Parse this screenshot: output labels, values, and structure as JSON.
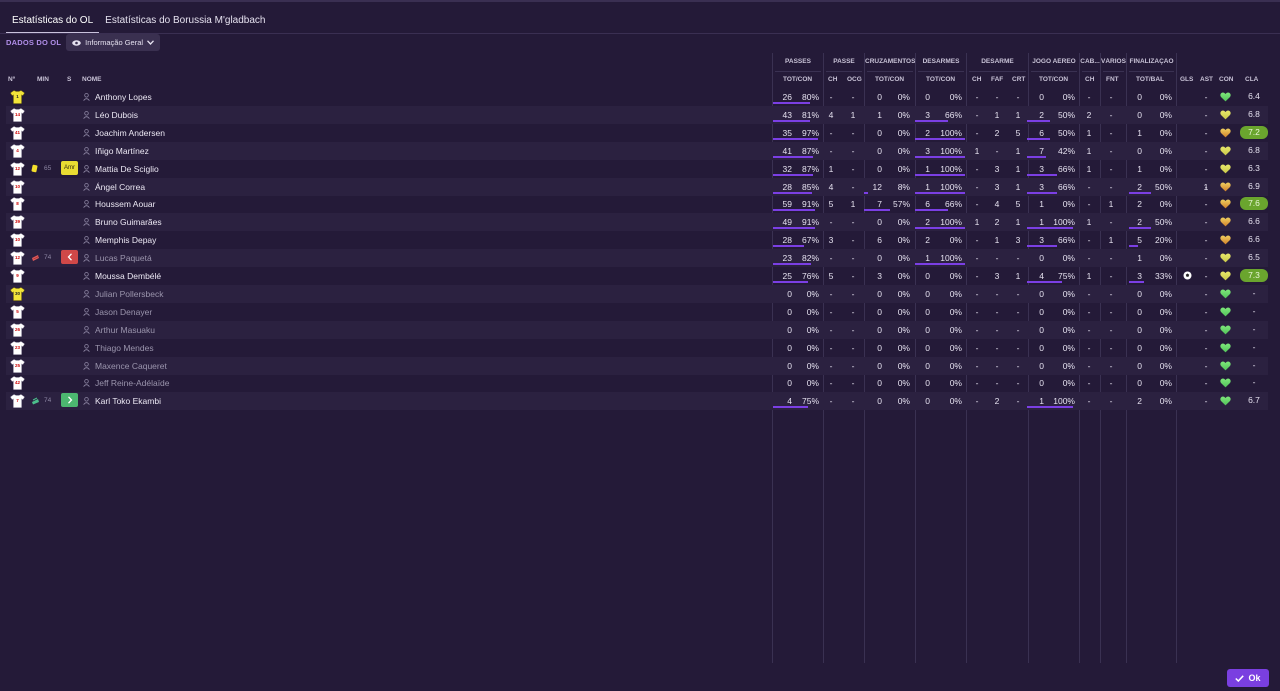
{
  "tabs": [
    "Estatísticas do OL",
    "Estatísticas do Borussia M'gladbach"
  ],
  "subbar": {
    "label": "DADOS DO OL",
    "dropdown": "Informação Geral"
  },
  "groups": [
    "PASSES",
    "PASSE",
    "CRUZAMENTOS",
    "DESARMES",
    "DESARME",
    "JOGO AÉREO",
    "CAB...",
    "VÁRIOS",
    "FINALIZAÇÃO"
  ],
  "headers": [
    "Nº",
    "MIN",
    "S",
    "NOME",
    "TOT/CON",
    "CH",
    "OCG",
    "TOT/CON",
    "TOT/CON",
    "CH",
    "FAF",
    "CRT",
    "TOT/CON",
    "CH",
    "FNT",
    "TOT/BAL",
    "GLS",
    "AST",
    "CON",
    "CLA"
  ],
  "colors": {
    "accent": "#7b3fe4",
    "background": "#241a38",
    "rating_high": "#6aa52e"
  },
  "players": [
    {
      "num": "1",
      "min": "",
      "sub": "",
      "card": "",
      "name": "Anthony Lopes",
      "pt": "26",
      "pp": "80%",
      "ch": "-",
      "ocg": "-",
      "ct": "0",
      "cp": "0%",
      "dt": "0",
      "dp": "0%",
      "dch": "-",
      "faf": "-",
      "crt": "-",
      "at": "0",
      "ap": "0%",
      "cab": "-",
      "fnt": "-",
      "ft": "0",
      "fp": "0%",
      "gls": "",
      "ast": "-",
      "con": "green",
      "cla": "6.4",
      "gk": true,
      "unused": false
    },
    {
      "num": "14",
      "min": "",
      "sub": "",
      "card": "",
      "name": "Léo Dubois",
      "pt": "43",
      "pp": "81%",
      "ch": "4",
      "ocg": "1",
      "ct": "1",
      "cp": "0%",
      "dt": "3",
      "dp": "66%",
      "dch": "-",
      "faf": "1",
      "crt": "1",
      "at": "2",
      "ap": "50%",
      "cab": "2",
      "fnt": "-",
      "ft": "0",
      "fp": "0%",
      "gls": "",
      "ast": "-",
      "con": "yellow",
      "cla": "6.8",
      "gk": false,
      "unused": false
    },
    {
      "num": "41",
      "min": "",
      "sub": "",
      "card": "",
      "name": "Joachim Andersen",
      "pt": "35",
      "pp": "97%",
      "ch": "-",
      "ocg": "-",
      "ct": "0",
      "cp": "0%",
      "dt": "2",
      "dp": "100%",
      "dch": "-",
      "faf": "2",
      "crt": "5",
      "at": "6",
      "ap": "50%",
      "cab": "1",
      "fnt": "-",
      "ft": "1",
      "fp": "0%",
      "gls": "",
      "ast": "-",
      "con": "orange",
      "cla": "7.2",
      "gk": false,
      "unused": false
    },
    {
      "num": "4",
      "min": "",
      "sub": "",
      "card": "",
      "name": "Iñigo Martínez",
      "pt": "41",
      "pp": "87%",
      "ch": "-",
      "ocg": "-",
      "ct": "0",
      "cp": "0%",
      "dt": "3",
      "dp": "100%",
      "dch": "1",
      "faf": "-",
      "crt": "1",
      "at": "7",
      "ap": "42%",
      "cab": "1",
      "fnt": "-",
      "ft": "0",
      "fp": "0%",
      "gls": "",
      "ast": "-",
      "con": "yellow",
      "cla": "6.8",
      "gk": false,
      "unused": false
    },
    {
      "num": "12",
      "min": "65",
      "sub": "Amr",
      "card": "yellow",
      "name": "Mattia De Sciglio",
      "pt": "32",
      "pp": "87%",
      "ch": "1",
      "ocg": "-",
      "ct": "0",
      "cp": "0%",
      "dt": "1",
      "dp": "100%",
      "dch": "-",
      "faf": "3",
      "crt": "1",
      "at": "3",
      "ap": "66%",
      "cab": "1",
      "fnt": "-",
      "ft": "1",
      "fp": "0%",
      "gls": "",
      "ast": "-",
      "con": "yellow",
      "cla": "6.3",
      "gk": false,
      "unused": false
    },
    {
      "num": "10",
      "min": "",
      "sub": "",
      "card": "",
      "name": "Ángel Correa",
      "pt": "28",
      "pp": "85%",
      "ch": "4",
      "ocg": "-",
      "ct": "12",
      "cp": "8%",
      "dt": "1",
      "dp": "100%",
      "dch": "-",
      "faf": "3",
      "crt": "1",
      "at": "3",
      "ap": "66%",
      "cab": "-",
      "fnt": "-",
      "ft": "2",
      "fp": "50%",
      "gls": "1",
      "ast": "-",
      "con": "orange",
      "cla": "6.9",
      "gk": false,
      "unused": false
    },
    {
      "num": "8",
      "min": "",
      "sub": "",
      "card": "",
      "name": "Houssem Aouar",
      "pt": "59",
      "pp": "91%",
      "ch": "5",
      "ocg": "1",
      "ct": "7",
      "cp": "57%",
      "dt": "6",
      "dp": "66%",
      "dch": "-",
      "faf": "4",
      "crt": "5",
      "at": "1",
      "ap": "0%",
      "cab": "-",
      "fnt": "1",
      "ft": "2",
      "fp": "0%",
      "gls": "",
      "ast": "-",
      "con": "orange",
      "cla": "7.6",
      "gk": false,
      "unused": false
    },
    {
      "num": "39",
      "min": "",
      "sub": "",
      "card": "",
      "name": "Bruno Guimarães",
      "pt": "49",
      "pp": "91%",
      "ch": "-",
      "ocg": "-",
      "ct": "0",
      "cp": "0%",
      "dt": "2",
      "dp": "100%",
      "dch": "1",
      "faf": "2",
      "crt": "1",
      "at": "1",
      "ap": "100%",
      "cab": "1",
      "fnt": "-",
      "ft": "2",
      "fp": "50%",
      "gls": "",
      "ast": "-",
      "con": "orange",
      "cla": "6.6",
      "gk": false,
      "unused": false
    },
    {
      "num": "10",
      "min": "",
      "sub": "",
      "card": "",
      "name": "Memphis Depay",
      "pt": "28",
      "pp": "67%",
      "ch": "3",
      "ocg": "-",
      "ct": "6",
      "cp": "0%",
      "dt": "2",
      "dp": "0%",
      "dch": "-",
      "faf": "1",
      "crt": "3",
      "at": "3",
      "ap": "66%",
      "cab": "-",
      "fnt": "1",
      "ft": "5",
      "fp": "20%",
      "gls": "",
      "ast": "-",
      "con": "orange",
      "cla": "6.6",
      "gk": false,
      "unused": false
    },
    {
      "num": "12",
      "min": "74",
      "sub": "out",
      "card": "injury",
      "name": "Lucas Paquetá",
      "pt": "23",
      "pp": "82%",
      "ch": "-",
      "ocg": "-",
      "ct": "0",
      "cp": "0%",
      "dt": "1",
      "dp": "100%",
      "dch": "-",
      "faf": "-",
      "crt": "-",
      "at": "0",
      "ap": "0%",
      "cab": "-",
      "fnt": "-",
      "ft": "1",
      "fp": "0%",
      "gls": "",
      "ast": "-",
      "con": "yellow",
      "cla": "6.5",
      "gk": false,
      "unused": true
    },
    {
      "num": "9",
      "min": "",
      "sub": "",
      "card": "",
      "name": "Moussa Dembélé",
      "pt": "25",
      "pp": "76%",
      "ch": "5",
      "ocg": "-",
      "ct": "3",
      "cp": "0%",
      "dt": "0",
      "dp": "0%",
      "dch": "-",
      "faf": "3",
      "crt": "1",
      "at": "4",
      "ap": "75%",
      "cab": "1",
      "fnt": "-",
      "ft": "3",
      "fp": "33%",
      "gls": "ball",
      "ast": "-",
      "con": "yellow",
      "cla": "7.3",
      "gk": false,
      "unused": false
    },
    {
      "num": "30",
      "min": "",
      "sub": "",
      "card": "",
      "name": "Julian Pollersbeck",
      "pt": "0",
      "pp": "0%",
      "ch": "-",
      "ocg": "-",
      "ct": "0",
      "cp": "0%",
      "dt": "0",
      "dp": "0%",
      "dch": "-",
      "faf": "-",
      "crt": "-",
      "at": "0",
      "ap": "0%",
      "cab": "-",
      "fnt": "-",
      "ft": "0",
      "fp": "0%",
      "gls": "",
      "ast": "-",
      "con": "green",
      "cla": "-",
      "gk": true,
      "unused": true
    },
    {
      "num": "5",
      "min": "",
      "sub": "",
      "card": "",
      "name": "Jason Denayer",
      "pt": "0",
      "pp": "0%",
      "ch": "-",
      "ocg": "-",
      "ct": "0",
      "cp": "0%",
      "dt": "0",
      "dp": "0%",
      "dch": "-",
      "faf": "-",
      "crt": "-",
      "at": "0",
      "ap": "0%",
      "cab": "-",
      "fnt": "-",
      "ft": "0",
      "fp": "0%",
      "gls": "",
      "ast": "-",
      "con": "green",
      "cla": "-",
      "gk": false,
      "unused": true
    },
    {
      "num": "26",
      "min": "",
      "sub": "",
      "card": "",
      "name": "Arthur Masuaku",
      "pt": "0",
      "pp": "0%",
      "ch": "-",
      "ocg": "-",
      "ct": "0",
      "cp": "0%",
      "dt": "0",
      "dp": "0%",
      "dch": "-",
      "faf": "-",
      "crt": "-",
      "at": "0",
      "ap": "0%",
      "cab": "-",
      "fnt": "-",
      "ft": "0",
      "fp": "0%",
      "gls": "",
      "ast": "-",
      "con": "green",
      "cla": "-",
      "gk": false,
      "unused": true
    },
    {
      "num": "23",
      "min": "",
      "sub": "",
      "card": "",
      "name": "Thiago Mendes",
      "pt": "0",
      "pp": "0%",
      "ch": "-",
      "ocg": "-",
      "ct": "0",
      "cp": "0%",
      "dt": "0",
      "dp": "0%",
      "dch": "-",
      "faf": "-",
      "crt": "-",
      "at": "0",
      "ap": "0%",
      "cab": "-",
      "fnt": "-",
      "ft": "0",
      "fp": "0%",
      "gls": "",
      "ast": "-",
      "con": "green",
      "cla": "-",
      "gk": false,
      "unused": true
    },
    {
      "num": "25",
      "min": "",
      "sub": "",
      "card": "",
      "name": "Maxence Caqueret",
      "pt": "0",
      "pp": "0%",
      "ch": "-",
      "ocg": "-",
      "ct": "0",
      "cp": "0%",
      "dt": "0",
      "dp": "0%",
      "dch": "-",
      "faf": "-",
      "crt": "-",
      "at": "0",
      "ap": "0%",
      "cab": "-",
      "fnt": "-",
      "ft": "0",
      "fp": "0%",
      "gls": "",
      "ast": "-",
      "con": "green",
      "cla": "-",
      "gk": false,
      "unused": true
    },
    {
      "num": "42",
      "min": "",
      "sub": "",
      "card": "",
      "name": "Jeff Reine-Adélaïde",
      "pt": "0",
      "pp": "0%",
      "ch": "-",
      "ocg": "-",
      "ct": "0",
      "cp": "0%",
      "dt": "0",
      "dp": "0%",
      "dch": "-",
      "faf": "-",
      "crt": "-",
      "at": "0",
      "ap": "0%",
      "cab": "-",
      "fnt": "-",
      "ft": "0",
      "fp": "0%",
      "gls": "",
      "ast": "-",
      "con": "green",
      "cla": "-",
      "gk": false,
      "unused": true
    },
    {
      "num": "7",
      "min": "74",
      "sub": "in",
      "card": "subin",
      "name": "Karl Toko Ekambi",
      "pt": "4",
      "pp": "75%",
      "ch": "-",
      "ocg": "-",
      "ct": "0",
      "cp": "0%",
      "dt": "0",
      "dp": "0%",
      "dch": "-",
      "faf": "2",
      "crt": "-",
      "at": "1",
      "ap": "100%",
      "cab": "-",
      "fnt": "-",
      "ft": "2",
      "fp": "0%",
      "gls": "",
      "ast": "-",
      "con": "green",
      "cla": "6.7",
      "gk": false,
      "unused": false
    }
  ],
  "ok_button": "Ok"
}
